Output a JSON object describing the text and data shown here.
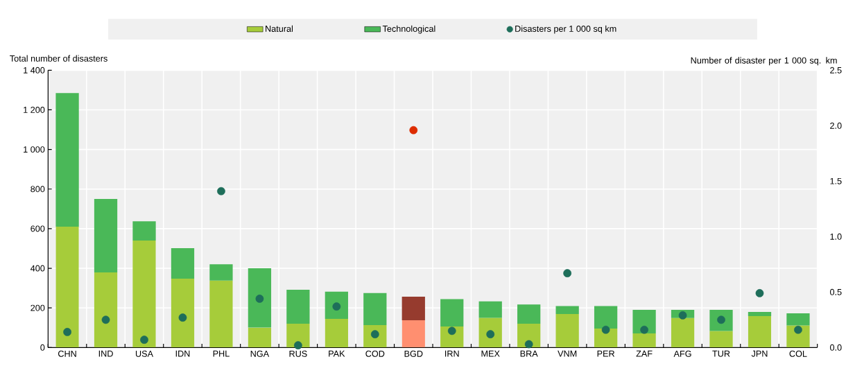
{
  "chart_data": {
    "type": "bar",
    "stacked": true,
    "legend": "top",
    "grid": true,
    "categories": [
      "CHN",
      "IND",
      "USA",
      "IDN",
      "PHL",
      "NGA",
      "RUS",
      "PAK",
      "COD",
      "BGD",
      "IRN",
      "MEX",
      "BRA",
      "VNM",
      "PER",
      "ZAF",
      "AFG",
      "TUR",
      "JPN",
      "COL"
    ],
    "ylabel": "Total number of disasters",
    "y2label": "Number of disaster per 1 000 sq. km",
    "ylim": [
      0,
      1400
    ],
    "yticks": [
      0,
      200,
      400,
      600,
      800,
      {
        "value": 1000,
        "label": "1 000"
      },
      {
        "value": 1200,
        "label": "1 200"
      },
      {
        "value": 1400,
        "label": "1 400"
      }
    ],
    "y2lim": [
      0,
      2.5
    ],
    "y2ticks": [
      {
        "value": 0,
        "label": "0.0"
      },
      0.5,
      {
        "value": 1,
        "label": "1.0"
      },
      1.5,
      {
        "value": 2,
        "label": "2.0"
      },
      2.5
    ],
    "series": [
      {
        "name": "Natural",
        "color": "#a6cc3a",
        "colors": [
          "#a6cc3a",
          "#a6cc3a",
          "#a6cc3a",
          "#a6cc3a",
          "#a6cc3a",
          "#a6cc3a",
          "#a6cc3a",
          "#a6cc3a",
          "#a6cc3a",
          "#ff8f70",
          "#a6cc3a",
          "#a6cc3a",
          "#a6cc3a",
          "#a6cc3a",
          "#a6cc3a",
          "#a6cc3a",
          "#a6cc3a",
          "#a6cc3a",
          "#a6cc3a",
          "#a6cc3a"
        ],
        "values": [
          610,
          379,
          540,
          348,
          338,
          101,
          120,
          145,
          113,
          138,
          106,
          150,
          120,
          169,
          96,
          71,
          149,
          83,
          159,
          111
        ]
      },
      {
        "name": "Technological",
        "color": "#4ab858",
        "colors": [
          "#4ab858",
          "#4ab858",
          "#4ab858",
          "#4ab858",
          "#4ab858",
          "#4ab858",
          "#4ab858",
          "#4ab858",
          "#4ab858",
          "#963b2e",
          "#4ab858",
          "#4ab858",
          "#4ab858",
          "#4ab858",
          "#4ab858",
          "#4ab858",
          "#4ab858",
          "#4ab858",
          "#4ab858",
          "#4ab858"
        ],
        "values": [
          675,
          371,
          97,
          154,
          82,
          299,
          172,
          137,
          162,
          119,
          138,
          83,
          97,
          40,
          113,
          119,
          41,
          107,
          21,
          62
        ]
      },
      {
        "name": "Disasters per 1 000 sq km",
        "type": "scatter",
        "axis": "y2",
        "marker": "circle",
        "color": "#1e6e5a",
        "colors": [
          "#1e6e5a",
          "#1e6e5a",
          "#1e6e5a",
          "#1e6e5a",
          "#1e6e5a",
          "#1e6e5a",
          "#1e6e5a",
          "#1e6e5a",
          "#1e6e5a",
          "#dd2c00",
          "#1e6e5a",
          "#1e6e5a",
          "#1e6e5a",
          "#1e6e5a",
          "#1e6e5a",
          "#1e6e5a",
          "#1e6e5a",
          "#1e6e5a",
          "#1e6e5a",
          "#1e6e5a"
        ],
        "values": [
          0.14,
          0.25,
          0.07,
          0.27,
          1.41,
          0.44,
          0.02,
          0.37,
          0.12,
          1.96,
          0.15,
          0.12,
          0.03,
          0.67,
          0.16,
          0.16,
          0.29,
          0.25,
          0.49,
          0.16
        ]
      }
    ]
  }
}
